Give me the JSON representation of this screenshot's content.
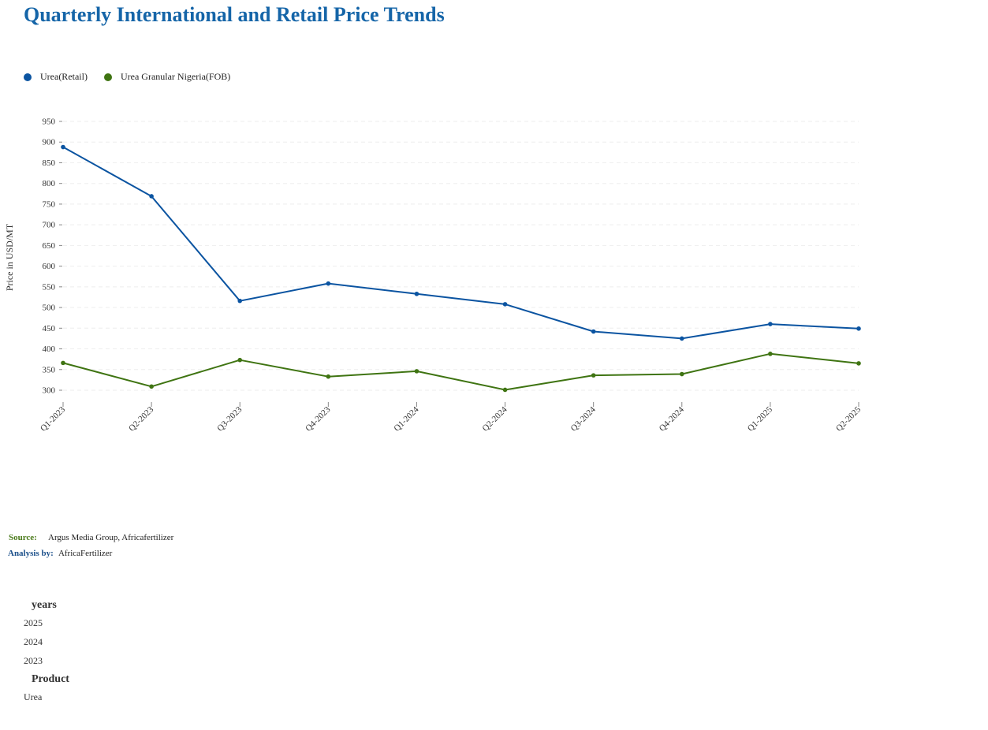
{
  "title": "Quarterly International and Retail Price Trends",
  "legend": [
    {
      "label": "Urea(Retail)",
      "color": "#0b54a1"
    },
    {
      "label": "Urea Granular Nigeria(FOB)",
      "color": "#3f7412"
    }
  ],
  "chart_data": {
    "type": "line",
    "title": "Quarterly International and Retail Price Trends",
    "xlabel": "",
    "ylabel": "Price in USD/MT",
    "ylim": [
      300,
      950
    ],
    "yticks": [
      300,
      350,
      400,
      450,
      500,
      550,
      600,
      650,
      700,
      750,
      800,
      850,
      900,
      950
    ],
    "grid": true,
    "legend_position": "top-left",
    "categories": [
      "Q1-2023",
      "Q2-2023",
      "Q3-2023",
      "Q4-2023",
      "Q1-2024",
      "Q2-2024",
      "Q3-2024",
      "Q4-2024",
      "Q1-2025",
      "Q2-2025"
    ],
    "series": [
      {
        "name": "Urea(Retail)",
        "color": "#0b54a1",
        "values": [
          888,
          769,
          516,
          558,
          533,
          508,
          442,
          425,
          460,
          449
        ]
      },
      {
        "name": "Urea Granular Nigeria(FOB)",
        "color": "#3f7412",
        "values": [
          366,
          309,
          373,
          333,
          346,
          301,
          336,
          339,
          388,
          365
        ]
      }
    ]
  },
  "footer": {
    "source_label": "Source:",
    "source_text": "Argus Media Group, Africafertilizer",
    "analysis_label": "Analysis by:",
    "analysis_text": "AfricaFertilizer"
  },
  "filters": [
    {
      "title": "years",
      "options": [
        "2025",
        "2024",
        "2023"
      ]
    },
    {
      "title": "Product",
      "options": [
        "Urea"
      ]
    }
  ]
}
